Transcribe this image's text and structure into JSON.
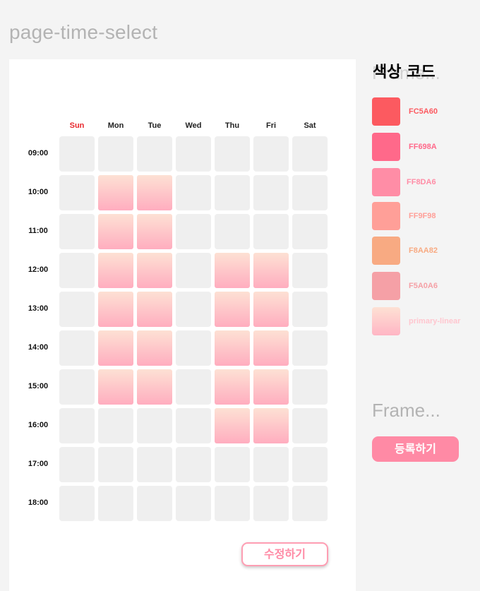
{
  "page_title": "page-time-select",
  "days": [
    "Sun",
    "Mon",
    "Tue",
    "Wed",
    "Thu",
    "Fri",
    "Sat"
  ],
  "times": [
    "09:00",
    "10:00",
    "11:00",
    "12:00",
    "13:00",
    "14:00",
    "15:00",
    "16:00",
    "17:00",
    "18:00"
  ],
  "selected": [
    [
      false,
      false,
      false,
      false,
      false,
      false,
      false
    ],
    [
      false,
      true,
      true,
      false,
      false,
      false,
      false
    ],
    [
      false,
      true,
      true,
      false,
      false,
      false,
      false
    ],
    [
      false,
      true,
      true,
      false,
      true,
      true,
      false
    ],
    [
      false,
      true,
      true,
      false,
      true,
      true,
      false
    ],
    [
      false,
      true,
      true,
      false,
      true,
      true,
      false
    ],
    [
      false,
      true,
      true,
      false,
      true,
      true,
      false
    ],
    [
      false,
      false,
      false,
      false,
      true,
      true,
      false
    ],
    [
      false,
      false,
      false,
      false,
      false,
      false,
      false
    ],
    [
      false,
      false,
      false,
      false,
      false,
      false,
      false
    ]
  ],
  "edit_button": "수정하기",
  "palette": {
    "title": "색상 코드",
    "ghost_label": "Frame...",
    "swatches": [
      {
        "code": "FC5A60",
        "color": "#FC5A60"
      },
      {
        "code": "FF698A",
        "color": "#FF698A"
      },
      {
        "code": "FF8DA6",
        "color": "#FF8DA6"
      },
      {
        "code": "FF9F98",
        "color": "#FF9F98"
      },
      {
        "code": "F8AA82",
        "color": "#F8AA82"
      },
      {
        "code": "F5A0A6",
        "color": "#F5A0A6"
      },
      {
        "code": "primary-linear",
        "color": "linear-gradient(180deg, #fde1d4 0%, #ffb5c4 100%)",
        "text_color": "#ffc6cf"
      }
    ]
  },
  "frame_label": "Frame...",
  "register_button": "등록하기",
  "colors": {
    "sunday": "#E8262B",
    "empty_cell": "#EFEFEF",
    "accent": "#FF8AA5"
  }
}
